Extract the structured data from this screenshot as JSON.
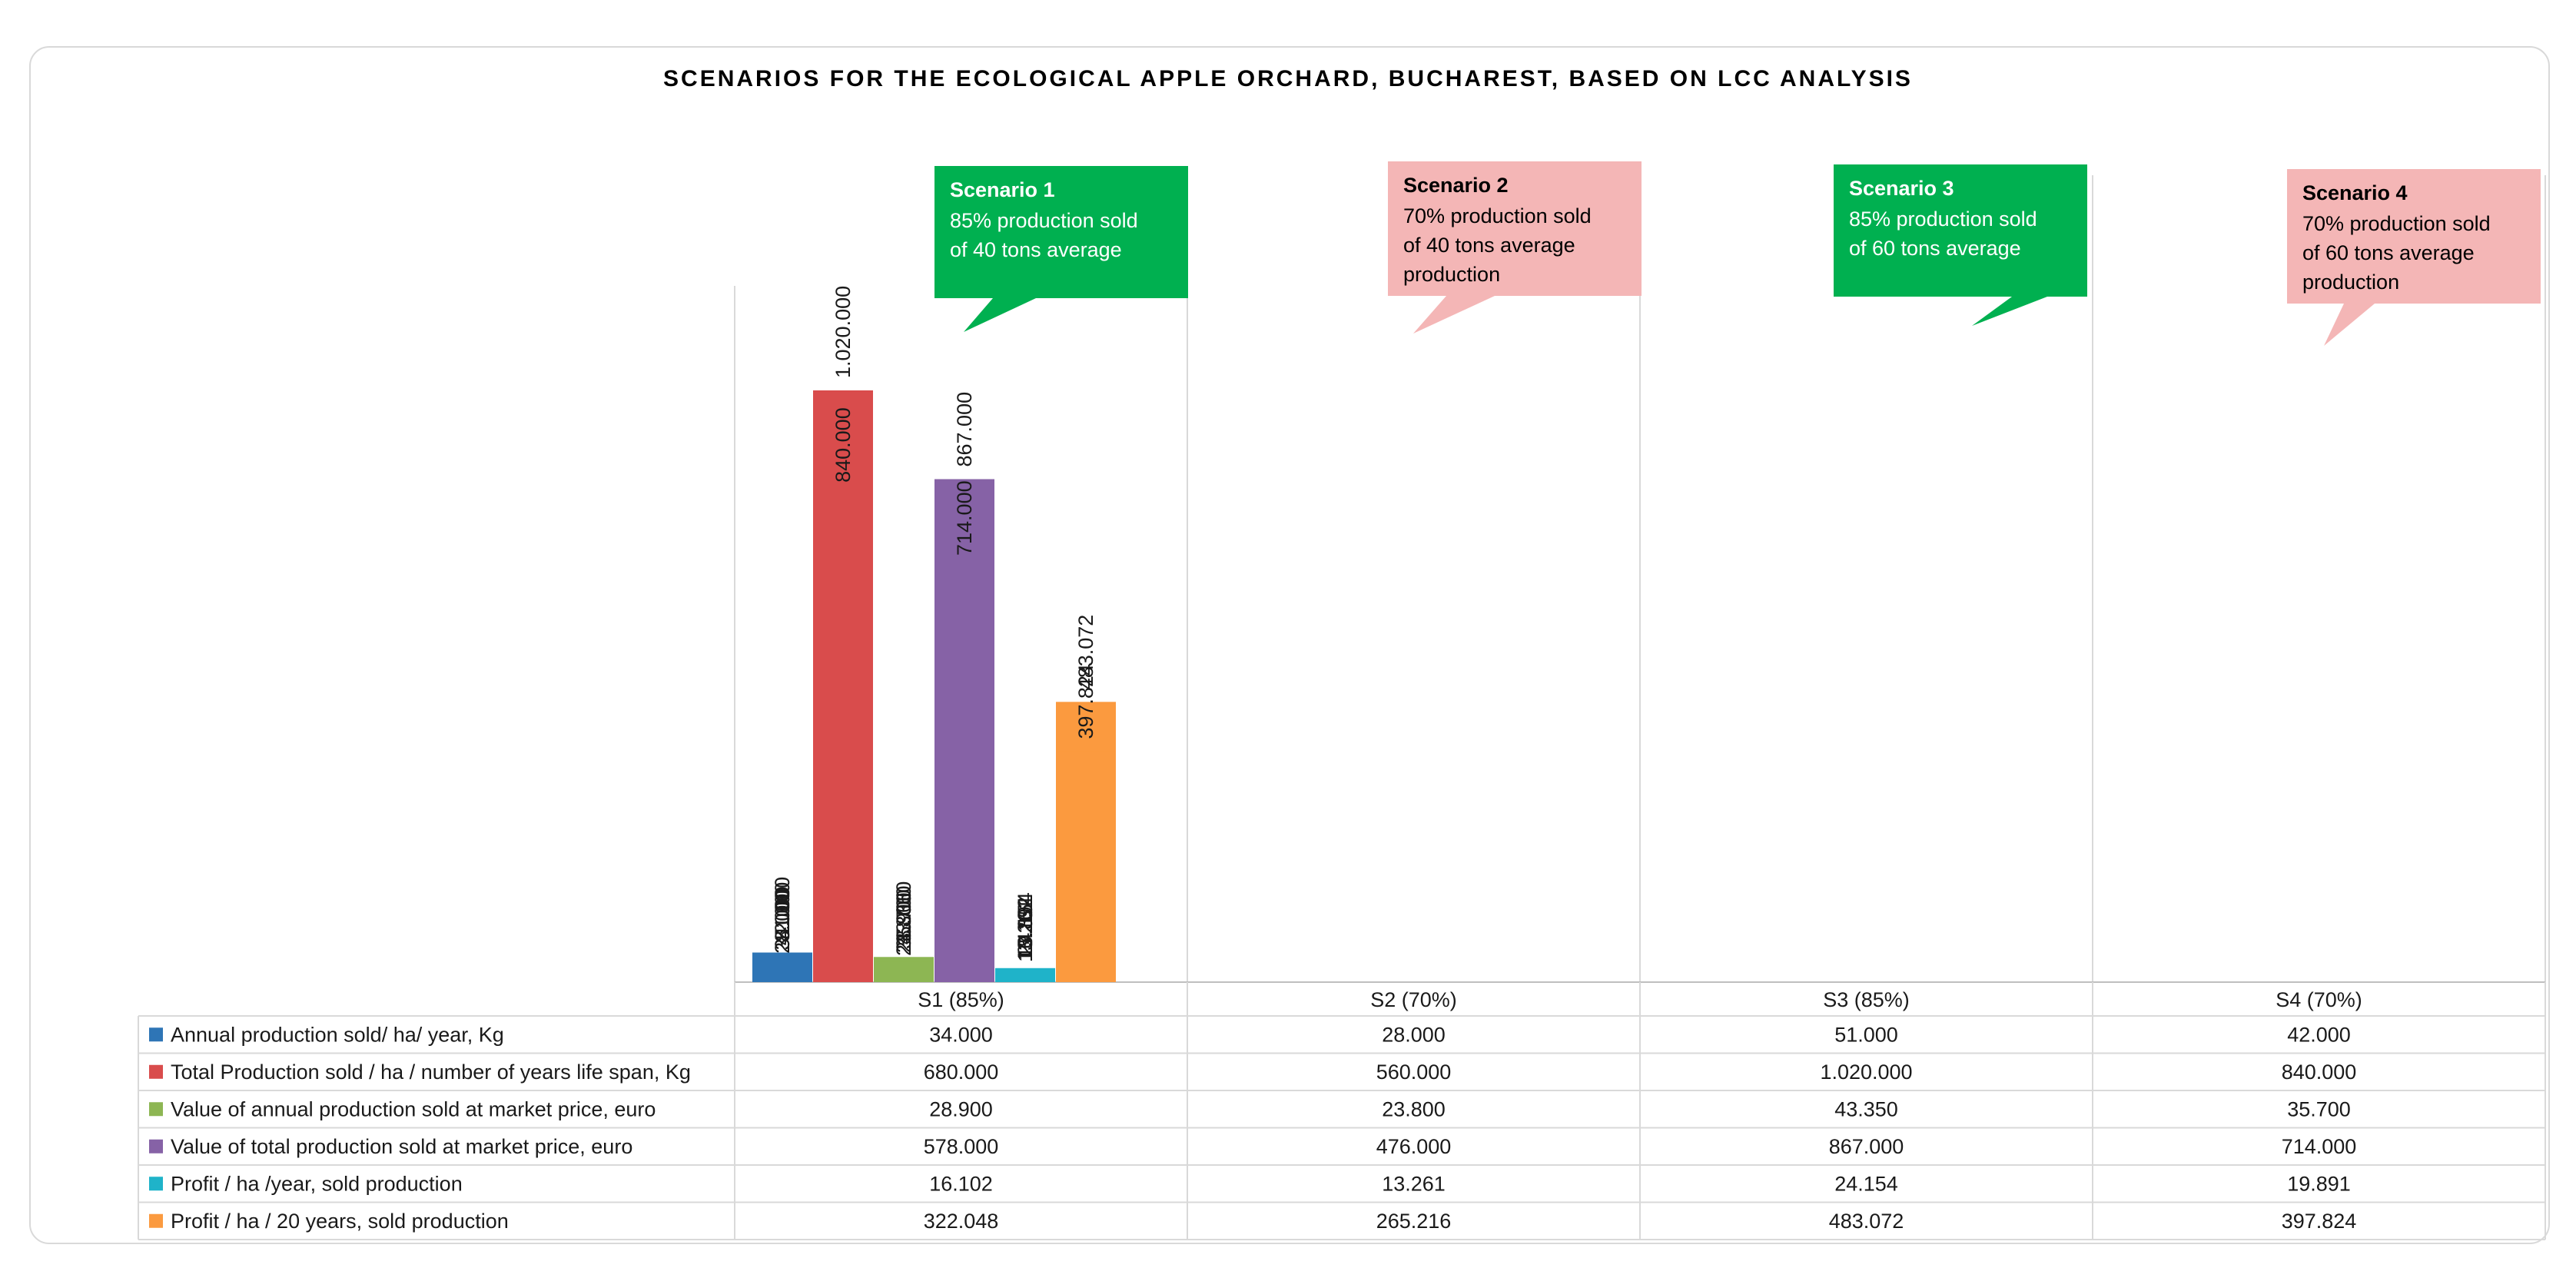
{
  "chart_data": {
    "type": "bar",
    "title": "SCENARIOS FOR THE ECOLOGICAL APPLE ORCHARD, BUCHAREST, BASED ON LCC ANALYSIS",
    "categories": [
      "S1 (85%)",
      "S2 (70%)",
      "S3 (85%)",
      "S4 (70%)"
    ],
    "series": [
      {
        "name": "Annual production sold/ ha/ year, Kg",
        "color": "#2e75b6",
        "values": [
          34000,
          28000,
          51000,
          42000
        ],
        "labels": [
          "34.000",
          "28.000",
          "51.000",
          "42.000"
        ]
      },
      {
        "name": "Total Production sold / ha / number of years life span, Kg",
        "color": "#d94c4c",
        "values": [
          680000,
          560000,
          1020000,
          840000
        ],
        "labels": [
          "680.000",
          "560.000",
          "1.020.000",
          "840.000"
        ]
      },
      {
        "name": "Value of annual production sold at market price, euro",
        "color": "#8db653",
        "values": [
          28900,
          23800,
          43350,
          35700
        ],
        "labels": [
          "28.900",
          "23.800",
          "43.350",
          "35.700"
        ]
      },
      {
        "name": "Value of total production sold at market price, euro",
        "color": "#8662a6",
        "values": [
          578000,
          476000,
          867000,
          714000
        ],
        "labels": [
          "578.000",
          "476.000",
          "867.000",
          "714.000"
        ]
      },
      {
        "name": "Profit / ha /year, sold production",
        "color": "#1fb3c9",
        "values": [
          16102,
          13261,
          24154,
          19891
        ],
        "labels": [
          "16.102",
          "13.261",
          "24.154",
          "19.891"
        ]
      },
      {
        "name": "Profit / ha / 20 years, sold production",
        "color": "#fb9a3f",
        "values": [
          322048,
          265216,
          483072,
          397824
        ],
        "labels": [
          "322.048",
          "265.216",
          "483.072",
          "397.824"
        ]
      }
    ],
    "ylim": [
      0,
      1020000
    ],
    "grid": false,
    "legend": "data-table",
    "annotations": [
      {
        "title": "Scenario 1",
        "lines": [
          "85% production sold",
          "of  40 tons average"
        ],
        "bg": "#00b050",
        "fg": "#ffffff"
      },
      {
        "title": "Scenario 2",
        "lines": [
          "70% production sold",
          "of  40 tons average",
          "production"
        ],
        "bg": "#f4b6b6",
        "fg": "#000000"
      },
      {
        "title": "Scenario 3",
        "lines": [
          "85% production sold",
          "of  60 tons average"
        ],
        "bg": "#00b050",
        "fg": "#ffffff"
      },
      {
        "title": "Scenario 4",
        "lines": [
          "70% production sold",
          "of 60 tons average",
          "production"
        ],
        "bg": "#f4b6b6",
        "fg": "#000000"
      }
    ]
  }
}
